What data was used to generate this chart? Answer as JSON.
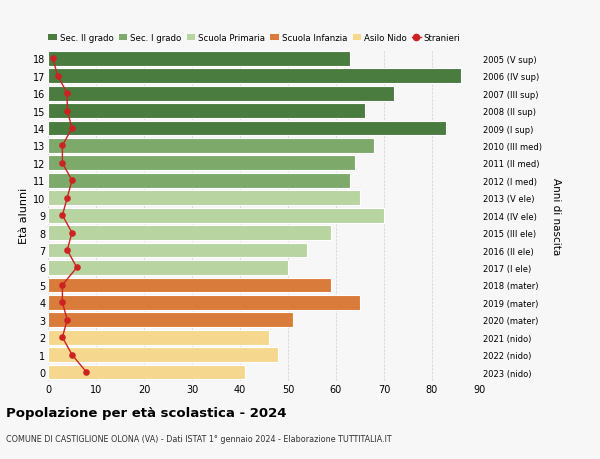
{
  "ages": [
    18,
    17,
    16,
    15,
    14,
    13,
    12,
    11,
    10,
    9,
    8,
    7,
    6,
    5,
    4,
    3,
    2,
    1,
    0
  ],
  "years": [
    "2005 (V sup)",
    "2006 (IV sup)",
    "2007 (III sup)",
    "2008 (II sup)",
    "2009 (I sup)",
    "2010 (III med)",
    "2011 (II med)",
    "2012 (I med)",
    "2013 (V ele)",
    "2014 (IV ele)",
    "2015 (III ele)",
    "2016 (II ele)",
    "2017 (I ele)",
    "2018 (mater)",
    "2019 (mater)",
    "2020 (mater)",
    "2021 (nido)",
    "2022 (nido)",
    "2023 (nido)"
  ],
  "bar_values": [
    63,
    86,
    72,
    66,
    83,
    68,
    64,
    63,
    65,
    70,
    59,
    54,
    50,
    59,
    65,
    51,
    46,
    48,
    41
  ],
  "bar_colors": [
    "#4a7c3f",
    "#4a7c3f",
    "#4a7c3f",
    "#4a7c3f",
    "#4a7c3f",
    "#7daa6b",
    "#7daa6b",
    "#7daa6b",
    "#b8d4a0",
    "#b8d4a0",
    "#b8d4a0",
    "#b8d4a0",
    "#b8d4a0",
    "#d97b3a",
    "#d97b3a",
    "#d97b3a",
    "#f5d78e",
    "#f5d78e",
    "#f5d78e"
  ],
  "stranieri_values": [
    1,
    2,
    4,
    4,
    5,
    3,
    3,
    5,
    4,
    3,
    5,
    4,
    6,
    3,
    3,
    4,
    3,
    5,
    8
  ],
  "legend_labels": [
    "Sec. II grado",
    "Sec. I grado",
    "Scuola Primaria",
    "Scuola Infanzia",
    "Asilo Nido",
    "Stranieri"
  ],
  "legend_colors": [
    "#4a7c3f",
    "#7daa6b",
    "#b8d4a0",
    "#d97b3a",
    "#f5d78e",
    "#cc2222"
  ],
  "title_bold": "Popolazione per età scolastica - 2024",
  "subtitle": "COMUNE DI CASTIGLIONE OLONA (VA) - Dati ISTAT 1° gennaio 2024 - Elaborazione TUTTITALIA.IT",
  "ylabel_left": "Età alunni",
  "ylabel_right": "Anni di nascita",
  "xlim": [
    0,
    90
  ],
  "background_color": "#f7f7f7",
  "bar_edge_color": "white"
}
